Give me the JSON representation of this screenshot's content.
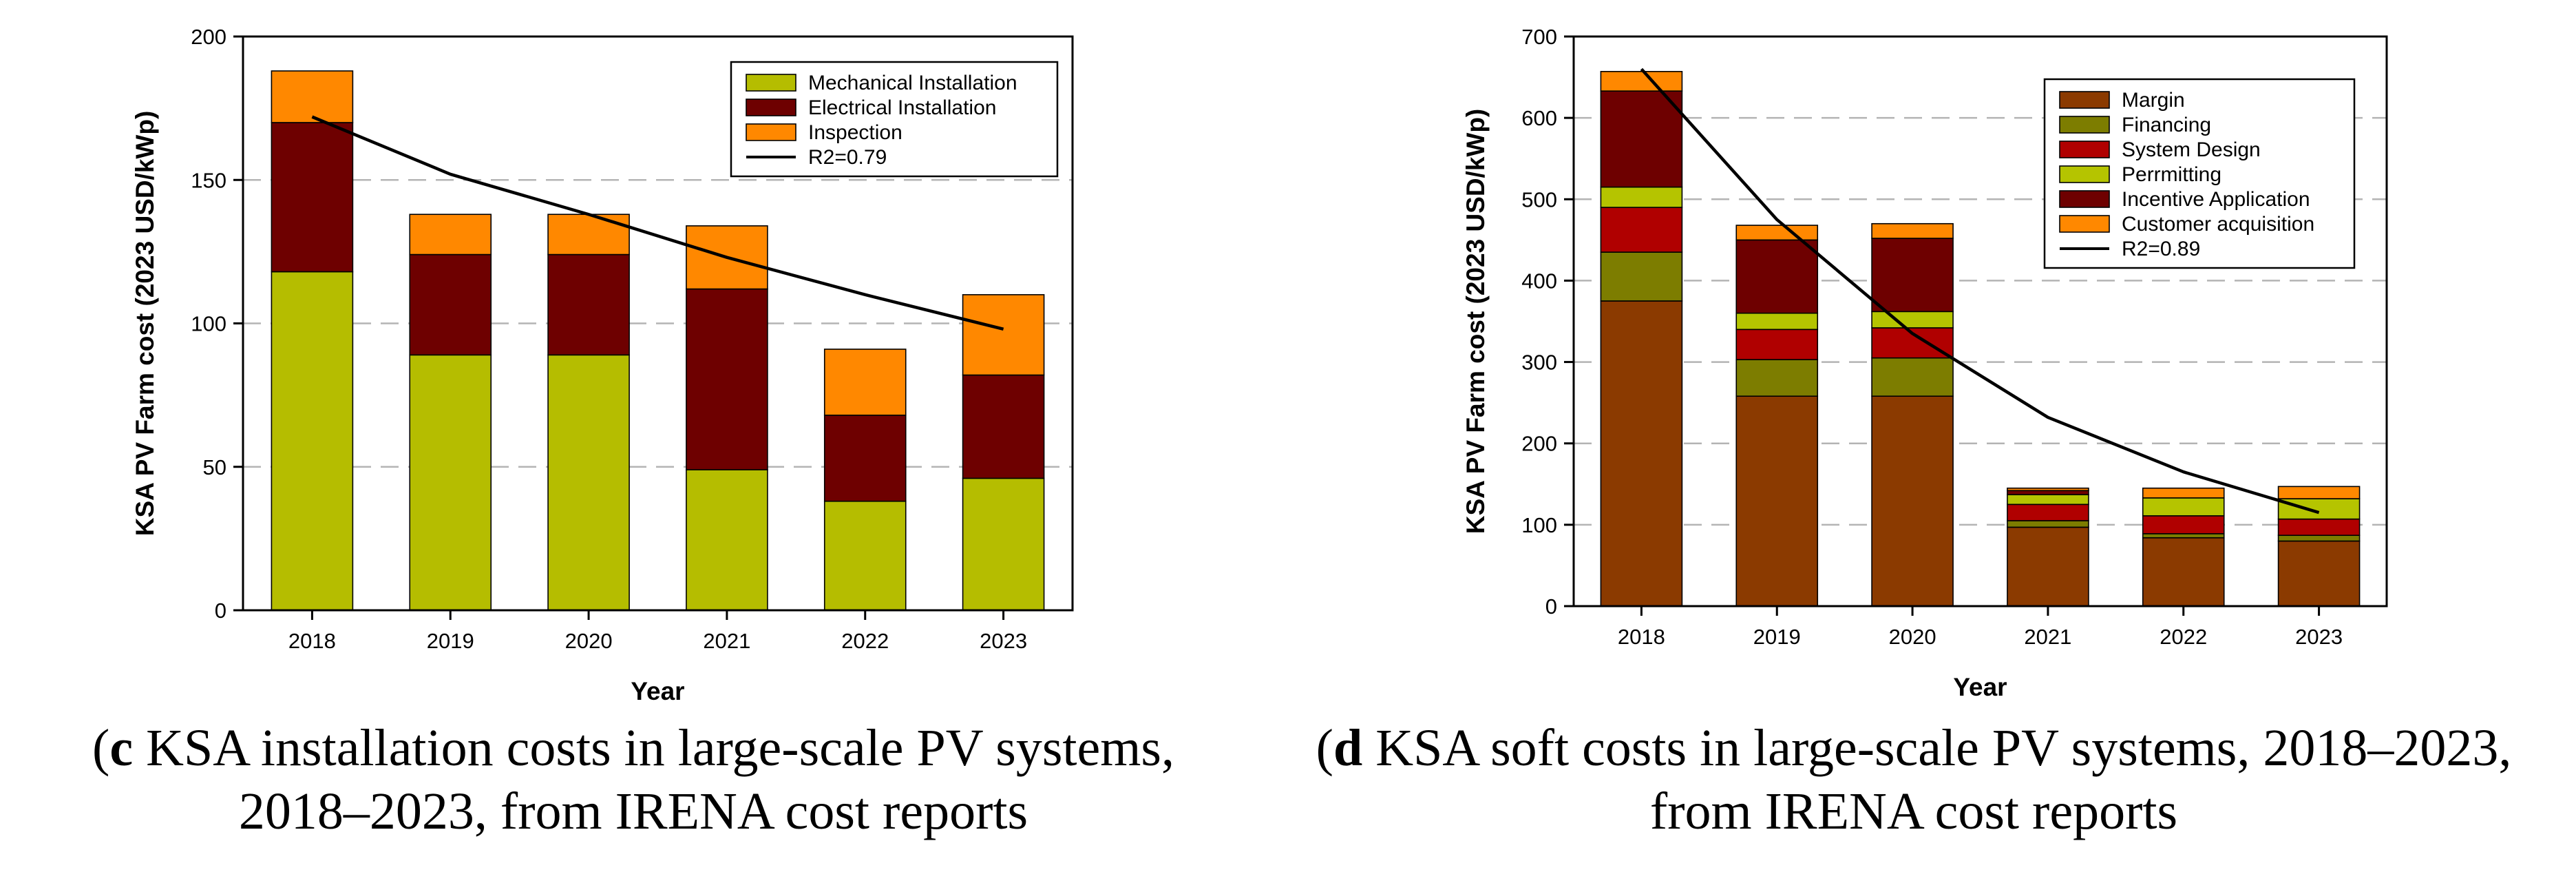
{
  "chart_data": [
    {
      "type": "bar",
      "stacked": true,
      "categories": [
        "2018",
        "2019",
        "2020",
        "2021",
        "2022",
        "2023"
      ],
      "series": [
        {
          "name": "Mechanical Installation",
          "color": "#b5bd00",
          "values": [
            118,
            89,
            89,
            49,
            38,
            46
          ]
        },
        {
          "name": "Electrical Installation",
          "color": "#6e0000",
          "values": [
            52,
            35,
            35,
            63,
            30,
            36
          ]
        },
        {
          "name": "Inspection",
          "color": "#ff8800",
          "values": [
            18,
            14,
            14,
            22,
            23,
            28
          ]
        }
      ],
      "trendline": {
        "name": "R2=0.79",
        "color": "#000000",
        "values": [
          172,
          152,
          138,
          123,
          110,
          98
        ]
      },
      "xlabel": "Year",
      "ylabel": "KSA PV Farm cost (2023 USD/kWp)",
      "ylim": [
        0,
        200
      ],
      "yticks": [
        0,
        50,
        100,
        150,
        200
      ],
      "grid": true,
      "legend_position": "top-right",
      "caption": {
        "label": "c",
        "text": " KSA installation costs in large-scale PV systems,",
        "text2": "2018–2023, from IRENA cost reports"
      }
    },
    {
      "type": "bar",
      "stacked": true,
      "categories": [
        "2018",
        "2019",
        "2020",
        "2021",
        "2022",
        "2023"
      ],
      "series": [
        {
          "name": "Margin",
          "color": "#8b3a00",
          "values": [
            375,
            258,
            258,
            97,
            84,
            80
          ]
        },
        {
          "name": "Financing",
          "color": "#7d7d00",
          "values": [
            60,
            45,
            47,
            8,
            5,
            7
          ]
        },
        {
          "name": "System Design",
          "color": "#b00000",
          "values": [
            55,
            37,
            37,
            20,
            22,
            20
          ]
        },
        {
          "name": "Perrmitting",
          "color": "#b5c400",
          "values": [
            25,
            20,
            20,
            12,
            22,
            25
          ]
        },
        {
          "name": "Incentive Application",
          "color": "#6e0000",
          "values": [
            118,
            90,
            90,
            5,
            0,
            0
          ]
        },
        {
          "name": "Customer acquisition",
          "color": "#ff8800",
          "values": [
            24,
            18,
            18,
            3,
            12,
            15
          ]
        }
      ],
      "trendline": {
        "name": "R2=0.89",
        "color": "#000000",
        "values": [
          660,
          475,
          335,
          232,
          165,
          115
        ]
      },
      "xlabel": "Year",
      "ylabel": "KSA PV Farm cost (2023 USD/kWp)",
      "ylim": [
        0,
        700
      ],
      "yticks": [
        0,
        100,
        200,
        300,
        400,
        500,
        600,
        700
      ],
      "grid": true,
      "legend_position": "top-right",
      "caption": {
        "label": "d",
        "text": " KSA soft costs in large-scale PV systems, 2018–2023,",
        "text2": "from IRENA cost reports"
      }
    }
  ]
}
